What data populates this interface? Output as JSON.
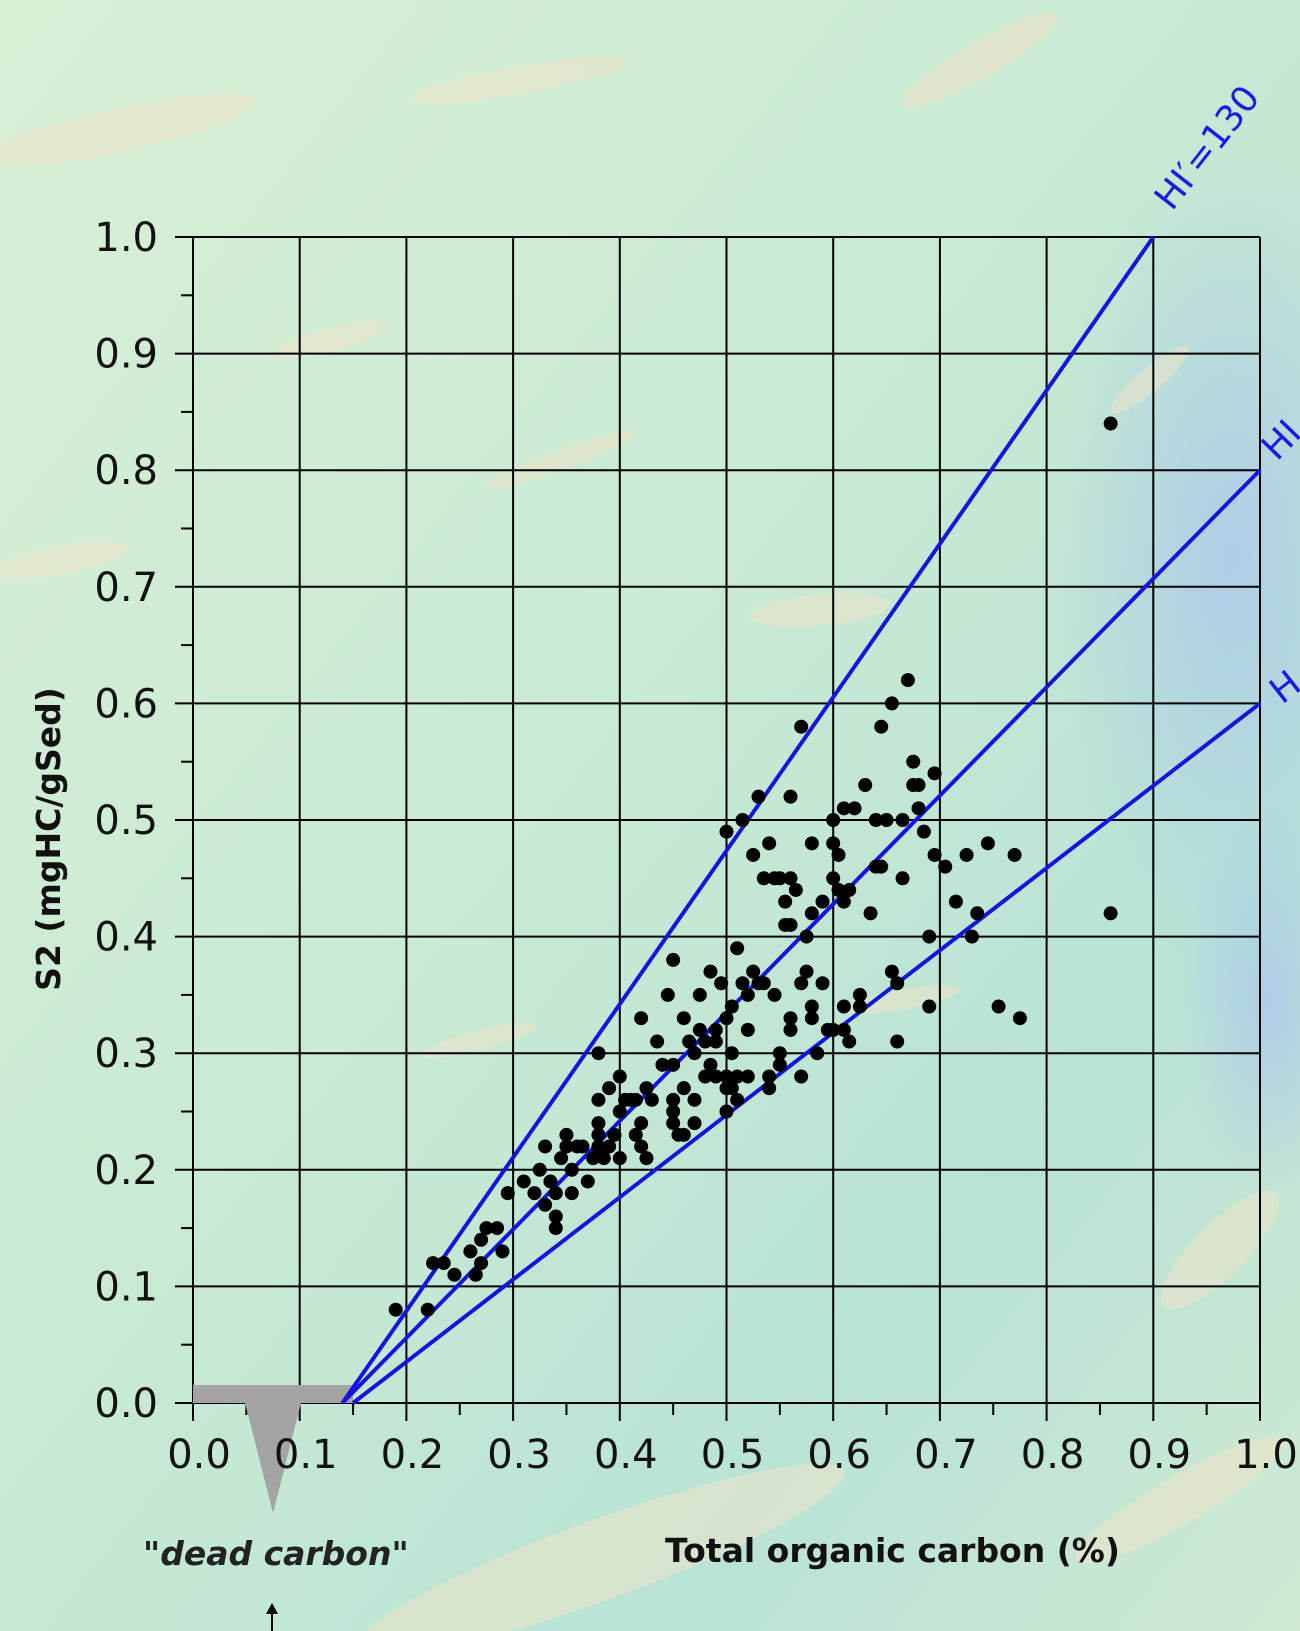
{
  "chart_data": {
    "type": "scatter",
    "xlabel": "Total organic carbon (%)",
    "ylabel": "S2 (mgHC/gSed)",
    "xlim": [
      0,
      1.0
    ],
    "ylim": [
      0,
      1.0
    ],
    "xticks": [
      "0.0",
      "0.1",
      "0.2",
      "0.3",
      "0.4",
      "0.5",
      "0.6",
      "0.7",
      "0.8",
      "0.9",
      "1.0"
    ],
    "yticks": [
      "0.0",
      "0.1",
      "0.2",
      "0.3",
      "0.4",
      "0.5",
      "0.6",
      "0.7",
      "0.8",
      "0.9",
      "1.0"
    ],
    "grid": true,
    "reference_lines": [
      {
        "label": "HI′=130",
        "points": [
          [
            0.14,
            0.0
          ],
          [
            0.9,
            1.0
          ]
        ]
      },
      {
        "label": "HI",
        "points": [
          [
            0.14,
            0.0
          ],
          [
            1.0,
            0.8
          ]
        ]
      },
      {
        "label": "H",
        "points": [
          [
            0.15,
            0.0
          ],
          [
            1.0,
            0.6
          ]
        ]
      }
    ],
    "dead_carbon": {
      "label": "\"dead carbon\"",
      "range": [
        0.0,
        0.15
      ],
      "marker_x": 0.075
    },
    "points": [
      [
        0.19,
        0.08
      ],
      [
        0.22,
        0.08
      ],
      [
        0.225,
        0.12
      ],
      [
        0.235,
        0.12
      ],
      [
        0.245,
        0.11
      ],
      [
        0.26,
        0.13
      ],
      [
        0.265,
        0.11
      ],
      [
        0.27,
        0.12
      ],
      [
        0.27,
        0.14
      ],
      [
        0.275,
        0.15
      ],
      [
        0.285,
        0.15
      ],
      [
        0.29,
        0.13
      ],
      [
        0.295,
        0.18
      ],
      [
        0.31,
        0.19
      ],
      [
        0.32,
        0.18
      ],
      [
        0.325,
        0.2
      ],
      [
        0.33,
        0.22
      ],
      [
        0.33,
        0.17
      ],
      [
        0.335,
        0.19
      ],
      [
        0.34,
        0.18
      ],
      [
        0.34,
        0.16
      ],
      [
        0.34,
        0.15
      ],
      [
        0.345,
        0.21
      ],
      [
        0.35,
        0.22
      ],
      [
        0.35,
        0.23
      ],
      [
        0.355,
        0.2
      ],
      [
        0.355,
        0.18
      ],
      [
        0.36,
        0.22
      ],
      [
        0.365,
        0.22
      ],
      [
        0.37,
        0.19
      ],
      [
        0.375,
        0.21
      ],
      [
        0.38,
        0.23
      ],
      [
        0.38,
        0.26
      ],
      [
        0.38,
        0.24
      ],
      [
        0.38,
        0.22
      ],
      [
        0.38,
        0.3
      ],
      [
        0.385,
        0.21
      ],
      [
        0.39,
        0.22
      ],
      [
        0.39,
        0.27
      ],
      [
        0.395,
        0.23
      ],
      [
        0.4,
        0.25
      ],
      [
        0.4,
        0.21
      ],
      [
        0.4,
        0.28
      ],
      [
        0.405,
        0.26
      ],
      [
        0.41,
        0.26
      ],
      [
        0.415,
        0.23
      ],
      [
        0.415,
        0.26
      ],
      [
        0.42,
        0.22
      ],
      [
        0.42,
        0.24
      ],
      [
        0.42,
        0.33
      ],
      [
        0.425,
        0.21
      ],
      [
        0.425,
        0.27
      ],
      [
        0.43,
        0.26
      ],
      [
        0.435,
        0.31
      ],
      [
        0.44,
        0.29
      ],
      [
        0.445,
        0.35
      ],
      [
        0.45,
        0.38
      ],
      [
        0.45,
        0.29
      ],
      [
        0.45,
        0.26
      ],
      [
        0.45,
        0.25
      ],
      [
        0.45,
        0.24
      ],
      [
        0.455,
        0.23
      ],
      [
        0.46,
        0.27
      ],
      [
        0.46,
        0.33
      ],
      [
        0.46,
        0.23
      ],
      [
        0.465,
        0.31
      ],
      [
        0.47,
        0.3
      ],
      [
        0.47,
        0.26
      ],
      [
        0.47,
        0.24
      ],
      [
        0.475,
        0.32
      ],
      [
        0.475,
        0.35
      ],
      [
        0.48,
        0.28
      ],
      [
        0.48,
        0.31
      ],
      [
        0.485,
        0.37
      ],
      [
        0.485,
        0.29
      ],
      [
        0.49,
        0.28
      ],
      [
        0.49,
        0.31
      ],
      [
        0.49,
        0.32
      ],
      [
        0.495,
        0.36
      ],
      [
        0.5,
        0.27
      ],
      [
        0.5,
        0.33
      ],
      [
        0.5,
        0.28
      ],
      [
        0.5,
        0.25
      ],
      [
        0.5,
        0.49
      ],
      [
        0.505,
        0.34
      ],
      [
        0.505,
        0.3
      ],
      [
        0.505,
        0.27
      ],
      [
        0.51,
        0.39
      ],
      [
        0.51,
        0.28
      ],
      [
        0.51,
        0.26
      ],
      [
        0.515,
        0.5
      ],
      [
        0.515,
        0.36
      ],
      [
        0.52,
        0.35
      ],
      [
        0.52,
        0.32
      ],
      [
        0.52,
        0.28
      ],
      [
        0.525,
        0.37
      ],
      [
        0.525,
        0.47
      ],
      [
        0.53,
        0.36
      ],
      [
        0.53,
        0.52
      ],
      [
        0.535,
        0.36
      ],
      [
        0.535,
        0.45
      ],
      [
        0.54,
        0.48
      ],
      [
        0.54,
        0.27
      ],
      [
        0.54,
        0.28
      ],
      [
        0.545,
        0.35
      ],
      [
        0.545,
        0.45
      ],
      [
        0.55,
        0.3
      ],
      [
        0.55,
        0.29
      ],
      [
        0.55,
        0.45
      ],
      [
        0.555,
        0.43
      ],
      [
        0.555,
        0.41
      ],
      [
        0.56,
        0.52
      ],
      [
        0.56,
        0.32
      ],
      [
        0.56,
        0.33
      ],
      [
        0.56,
        0.45
      ],
      [
        0.56,
        0.41
      ],
      [
        0.565,
        0.44
      ],
      [
        0.57,
        0.58
      ],
      [
        0.57,
        0.36
      ],
      [
        0.57,
        0.28
      ],
      [
        0.575,
        0.37
      ],
      [
        0.575,
        0.4
      ],
      [
        0.58,
        0.48
      ],
      [
        0.58,
        0.42
      ],
      [
        0.58,
        0.33
      ],
      [
        0.58,
        0.34
      ],
      [
        0.585,
        0.3
      ],
      [
        0.59,
        0.36
      ],
      [
        0.59,
        0.43
      ],
      [
        0.595,
        0.32
      ],
      [
        0.6,
        0.45
      ],
      [
        0.6,
        0.5
      ],
      [
        0.6,
        0.32
      ],
      [
        0.6,
        0.48
      ],
      [
        0.605,
        0.44
      ],
      [
        0.605,
        0.47
      ],
      [
        0.61,
        0.51
      ],
      [
        0.61,
        0.43
      ],
      [
        0.61,
        0.34
      ],
      [
        0.61,
        0.32
      ],
      [
        0.615,
        0.44
      ],
      [
        0.615,
        0.31
      ],
      [
        0.62,
        0.51
      ],
      [
        0.625,
        0.35
      ],
      [
        0.625,
        0.34
      ],
      [
        0.63,
        0.53
      ],
      [
        0.635,
        0.42
      ],
      [
        0.64,
        0.5
      ],
      [
        0.64,
        0.46
      ],
      [
        0.645,
        0.46
      ],
      [
        0.645,
        0.58
      ],
      [
        0.65,
        0.5
      ],
      [
        0.655,
        0.6
      ],
      [
        0.655,
        0.37
      ],
      [
        0.66,
        0.36
      ],
      [
        0.66,
        0.31
      ],
      [
        0.665,
        0.5
      ],
      [
        0.665,
        0.45
      ],
      [
        0.67,
        0.62
      ],
      [
        0.675,
        0.55
      ],
      [
        0.675,
        0.53
      ],
      [
        0.68,
        0.51
      ],
      [
        0.68,
        0.53
      ],
      [
        0.685,
        0.49
      ],
      [
        0.69,
        0.4
      ],
      [
        0.69,
        0.34
      ],
      [
        0.695,
        0.47
      ],
      [
        0.695,
        0.54
      ],
      [
        0.705,
        0.46
      ],
      [
        0.715,
        0.43
      ],
      [
        0.725,
        0.47
      ],
      [
        0.73,
        0.4
      ],
      [
        0.735,
        0.42
      ],
      [
        0.745,
        0.48
      ],
      [
        0.755,
        0.34
      ],
      [
        0.77,
        0.47
      ],
      [
        0.775,
        0.33
      ],
      [
        0.86,
        0.84
      ],
      [
        0.86,
        0.42
      ]
    ]
  }
}
